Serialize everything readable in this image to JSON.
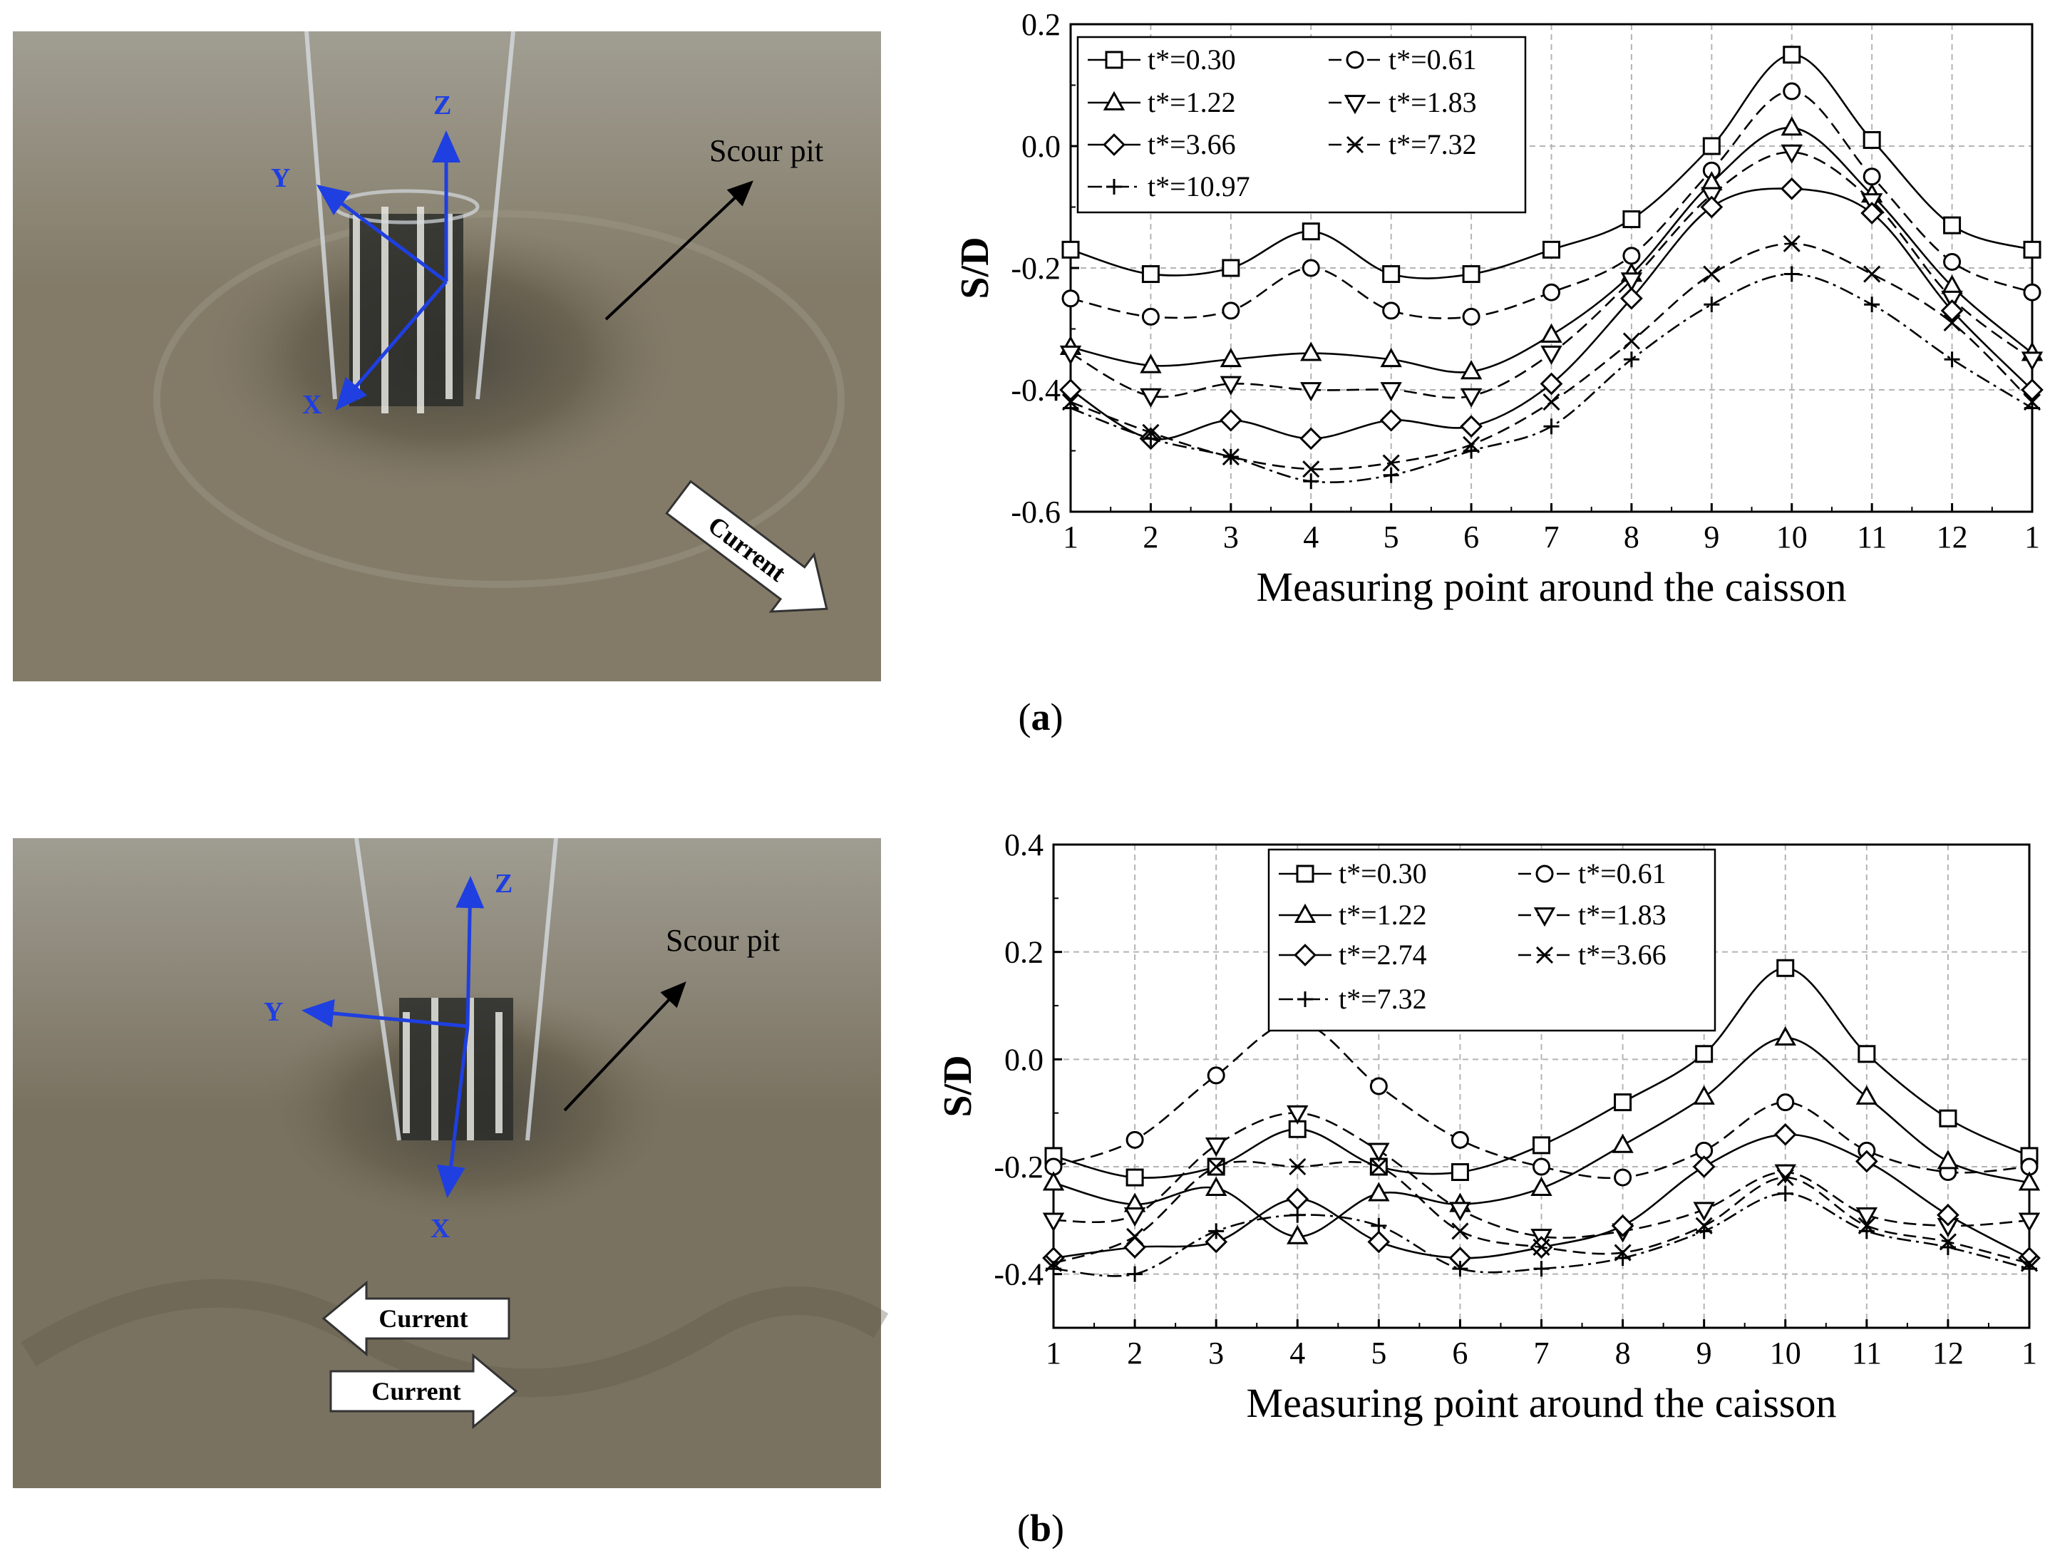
{
  "panels": [
    {
      "label": "a",
      "photo": {
        "axes": [
          "X",
          "Y",
          "Z"
        ],
        "scour_label": "Scour pit",
        "currents": [
          "Current"
        ]
      }
    },
    {
      "label": "b",
      "photo": {
        "axes": [
          "X",
          "Y",
          "Z"
        ],
        "scour_label": "Scour pit",
        "currents": [
          "Current",
          "Current"
        ]
      }
    }
  ],
  "colors": {
    "line": "#000000",
    "grid": "#b4b4b4",
    "photo_sand": "#7d7462",
    "axis_arrow": "#1f3fe0"
  },
  "chart_data": [
    {
      "type": "line",
      "panel": "a",
      "title": "",
      "xlabel": "Measuring point around the caisson",
      "ylabel": "S/D",
      "x": [
        1,
        2,
        3,
        4,
        5,
        6,
        7,
        8,
        9,
        10,
        11,
        12,
        13
      ],
      "xtick_labels": [
        "1",
        "2",
        "3",
        "4",
        "5",
        "6",
        "7",
        "8",
        "9",
        "10",
        "11",
        "12",
        "1"
      ],
      "ylim": [
        -0.6,
        0.2
      ],
      "yticks": [
        "-0.6",
        "-0.4",
        "-0.2",
        "0.0",
        "0.2"
      ],
      "grid": true,
      "legend_position": "top-left",
      "series": [
        {
          "name": "t*=0.30",
          "marker": "square",
          "dash": "solid",
          "values": [
            -0.17,
            -0.21,
            -0.2,
            -0.14,
            -0.21,
            -0.21,
            -0.17,
            -0.12,
            0.0,
            0.15,
            0.01,
            -0.13,
            -0.17
          ]
        },
        {
          "name": "t*=0.61",
          "marker": "circle",
          "dash": "dashed",
          "values": [
            -0.25,
            -0.28,
            -0.27,
            -0.2,
            -0.27,
            -0.28,
            -0.24,
            -0.18,
            -0.04,
            0.09,
            -0.05,
            -0.19,
            -0.24
          ]
        },
        {
          "name": "t*=1.22",
          "marker": "triangle-up",
          "dash": "solid",
          "values": [
            -0.33,
            -0.36,
            -0.35,
            -0.34,
            -0.35,
            -0.37,
            -0.31,
            -0.21,
            -0.06,
            0.03,
            -0.08,
            -0.23,
            -0.34
          ]
        },
        {
          "name": "t*=1.83",
          "marker": "triangle-down",
          "dash": "dashed",
          "values": [
            -0.34,
            -0.41,
            -0.39,
            -0.4,
            -0.4,
            -0.41,
            -0.34,
            -0.22,
            -0.08,
            -0.01,
            -0.09,
            -0.25,
            -0.35
          ]
        },
        {
          "name": "t*=3.66",
          "marker": "diamond",
          "dash": "solid",
          "values": [
            -0.4,
            -0.48,
            -0.45,
            -0.48,
            -0.45,
            -0.46,
            -0.39,
            -0.25,
            -0.1,
            -0.07,
            -0.11,
            -0.27,
            -0.4
          ]
        },
        {
          "name": "t*=7.32",
          "marker": "x",
          "dash": "dashed",
          "values": [
            -0.42,
            -0.47,
            -0.51,
            -0.53,
            -0.52,
            -0.49,
            -0.42,
            -0.32,
            -0.21,
            -0.16,
            -0.21,
            -0.29,
            -0.42
          ]
        },
        {
          "name": "t*=10.97",
          "marker": "plus",
          "dash": "dashdot",
          "values": [
            -0.43,
            -0.48,
            -0.51,
            -0.55,
            -0.54,
            -0.5,
            -0.46,
            -0.35,
            -0.26,
            -0.21,
            -0.26,
            -0.35,
            -0.43
          ]
        }
      ]
    },
    {
      "type": "line",
      "panel": "b",
      "title": "",
      "xlabel": "Measuring point around the caisson",
      "ylabel": "S/D",
      "x": [
        1,
        2,
        3,
        4,
        5,
        6,
        7,
        8,
        9,
        10,
        11,
        12,
        13
      ],
      "xtick_labels": [
        "1",
        "2",
        "3",
        "4",
        "5",
        "6",
        "7",
        "8",
        "9",
        "10",
        "11",
        "12",
        "1"
      ],
      "ylim": [
        -0.5,
        0.4
      ],
      "yticks": [
        "-0.4",
        "-0.2",
        "0.0",
        "0.2",
        "0.4"
      ],
      "grid": true,
      "legend_position": "top-center",
      "series": [
        {
          "name": "t*=0.30",
          "marker": "square",
          "dash": "solid",
          "values": [
            -0.18,
            -0.22,
            -0.2,
            -0.13,
            -0.2,
            -0.21,
            -0.16,
            -0.08,
            0.01,
            0.17,
            0.01,
            -0.11,
            -0.18
          ]
        },
        {
          "name": "t*=0.61",
          "marker": "circle",
          "dash": "dashed",
          "values": [
            -0.2,
            -0.15,
            -0.03,
            0.07,
            -0.05,
            -0.15,
            -0.2,
            -0.22,
            -0.17,
            -0.08,
            -0.17,
            -0.21,
            -0.2
          ]
        },
        {
          "name": "t*=1.22",
          "marker": "triangle-up",
          "dash": "solid",
          "values": [
            -0.23,
            -0.27,
            -0.24,
            -0.33,
            -0.25,
            -0.27,
            -0.24,
            -0.16,
            -0.07,
            0.04,
            -0.07,
            -0.19,
            -0.23
          ]
        },
        {
          "name": "t*=1.83",
          "marker": "triangle-down",
          "dash": "dashed",
          "values": [
            -0.3,
            -0.29,
            -0.16,
            -0.1,
            -0.17,
            -0.28,
            -0.33,
            -0.32,
            -0.28,
            -0.21,
            -0.29,
            -0.31,
            -0.3
          ]
        },
        {
          "name": "t*=2.74",
          "marker": "diamond",
          "dash": "solid",
          "values": [
            -0.37,
            -0.35,
            -0.34,
            -0.26,
            -0.34,
            -0.37,
            -0.35,
            -0.31,
            -0.2,
            -0.14,
            -0.19,
            -0.29,
            -0.37
          ]
        },
        {
          "name": "t*=3.66",
          "marker": "x",
          "dash": "dashed",
          "values": [
            -0.38,
            -0.33,
            -0.2,
            -0.2,
            -0.2,
            -0.32,
            -0.35,
            -0.36,
            -0.31,
            -0.22,
            -0.31,
            -0.34,
            -0.38
          ]
        },
        {
          "name": "t*=7.32",
          "marker": "plus",
          "dash": "dashdot",
          "values": [
            -0.39,
            -0.4,
            -0.32,
            -0.29,
            -0.31,
            -0.39,
            -0.39,
            -0.37,
            -0.32,
            -0.25,
            -0.32,
            -0.35,
            -0.39
          ]
        }
      ]
    }
  ]
}
